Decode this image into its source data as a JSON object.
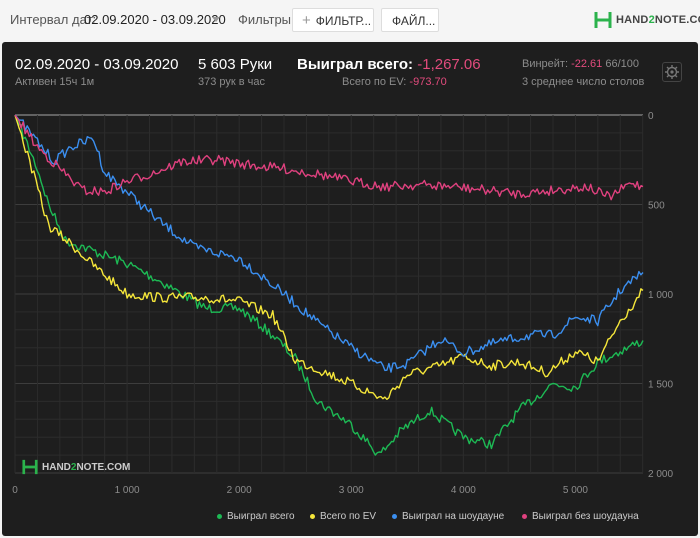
{
  "toolbar": {
    "date_label": "Интервал дат:",
    "date_value": "02.09.2020 - 03.09.2020",
    "filters_label": "Фильтры:",
    "filter_button": "ФИЛЬТР...",
    "files_button": "ФАЙЛ...",
    "logo_pre": "HAND",
    "logo_two": "2",
    "logo_post": "NOTE.COM"
  },
  "summary": {
    "date_range": "02.09.2020 - 03.09.2020",
    "active": "Активен 15ч 1м",
    "hands": "5 603 Руки",
    "hands_per_hour": "373 рук в час",
    "won_label": "Выиграл всего:",
    "won_value": "-1,267.06",
    "ev_label": "Всего по EV:",
    "ev_value": "-973.70",
    "winrate_label": "Винрейт:",
    "winrate_value": "-22.61",
    "winrate_suffix": "66/100",
    "tables": "3 среднее число столов"
  },
  "colors": {
    "green": "#1db954",
    "yellow": "#f5e63a",
    "blue": "#3b8ff0",
    "pink": "#e0417f",
    "grid": "#3a3a3a"
  },
  "chart_data": {
    "type": "line",
    "x_ticks": [
      "0",
      "1 000",
      "2 000",
      "3 000",
      "4 000",
      "5 000"
    ],
    "x_tick_values": [
      0,
      1000,
      2000,
      3000,
      4000,
      5000
    ],
    "y_ticks": [
      "0",
      "500",
      "1 000",
      "1 500",
      "2 000"
    ],
    "y_tick_values": [
      0,
      500,
      1000,
      1500,
      2000
    ],
    "xlim": [
      0,
      5603
    ],
    "ylim": [
      0,
      2000
    ],
    "y_direction": "down",
    "legend_position": "bottom",
    "series": [
      {
        "name": "Выиграл всего",
        "color": "#1db954",
        "x": [
          0,
          200,
          300,
          450,
          700,
          1000,
          1300,
          1700,
          2000,
          2300,
          2500,
          2700,
          3000,
          3250,
          3450,
          3700,
          4000,
          4250,
          4500,
          4800,
          5000,
          5200,
          5400,
          5603
        ],
        "y": [
          0,
          300,
          500,
          700,
          760,
          830,
          930,
          1080,
          1080,
          1230,
          1360,
          1600,
          1730,
          1900,
          1760,
          1650,
          1800,
          1840,
          1650,
          1500,
          1520,
          1380,
          1320,
          1260
        ]
      },
      {
        "name": "Всего по EV",
        "color": "#f5e63a",
        "x": [
          0,
          150,
          300,
          500,
          700,
          1000,
          1300,
          1700,
          2000,
          2300,
          2500,
          2700,
          3000,
          3300,
          3500,
          3800,
          4000,
          4250,
          4500,
          4750,
          5000,
          5200,
          5400,
          5603
        ],
        "y": [
          0,
          300,
          620,
          720,
          840,
          1000,
          1020,
          1020,
          1040,
          1120,
          1370,
          1420,
          1500,
          1590,
          1450,
          1400,
          1350,
          1400,
          1380,
          1440,
          1320,
          1380,
          1150,
          980
        ]
      },
      {
        "name": "Выиграл на шоудауне",
        "color": "#3b8ff0",
        "x": [
          0,
          200,
          350,
          500,
          700,
          800,
          1000,
          1300,
          1600,
          2000,
          2200,
          2400,
          2700,
          3000,
          3300,
          3500,
          3800,
          4000,
          4300,
          4600,
          4800,
          5000,
          5200,
          5400,
          5603
        ],
        "y": [
          0,
          150,
          260,
          180,
          130,
          320,
          430,
          600,
          740,
          800,
          900,
          1000,
          1160,
          1300,
          1420,
          1390,
          1250,
          1330,
          1270,
          1230,
          1230,
          1130,
          1150,
          980,
          880
        ]
      },
      {
        "name": "Выиграл без шоудауна",
        "color": "#e0417f",
        "x": [
          0,
          200,
          400,
          600,
          800,
          1000,
          1200,
          1500,
          1800,
          2100,
          2400,
          2700,
          3000,
          3300,
          3600,
          3900,
          4200,
          4500,
          4800,
          5100,
          5300,
          5500,
          5603
        ],
        "y": [
          0,
          180,
          300,
          420,
          430,
          370,
          330,
          260,
          250,
          280,
          300,
          330,
          370,
          400,
          390,
          400,
          420,
          440,
          420,
          400,
          460,
          380,
          400
        ]
      }
    ]
  },
  "watermark": {
    "pre": "HAND",
    "two": "2",
    "post": "NOTE.COM"
  }
}
